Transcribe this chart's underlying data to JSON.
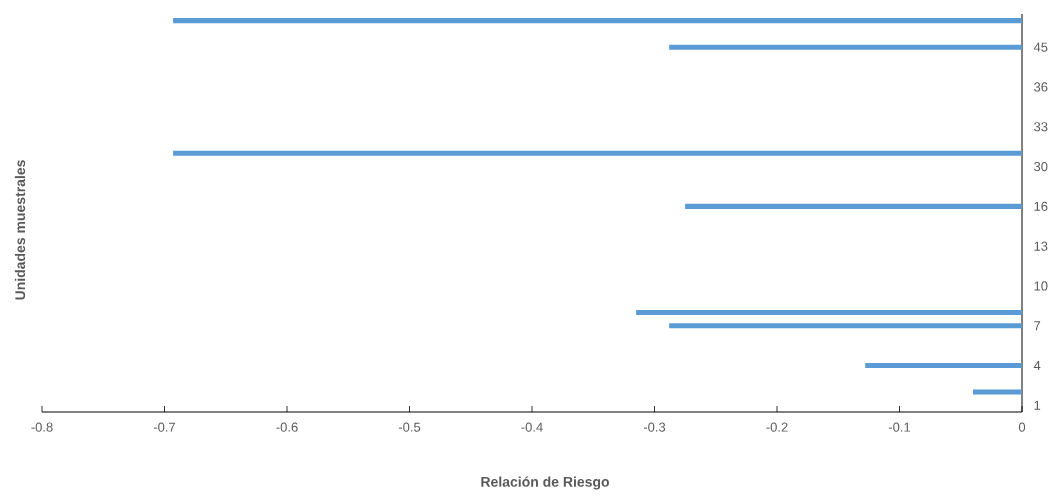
{
  "chart_data": {
    "type": "bar",
    "orientation": "horizontal",
    "xlabel": "Relación de Riesgo",
    "ylabel": "Unidades muestrales",
    "categories": [
      null,
      null,
      "45",
      null,
      null,
      "36",
      null,
      null,
      "33",
      null,
      null,
      "30",
      null,
      null,
      "16",
      null,
      null,
      "13",
      null,
      null,
      "10",
      null,
      null,
      "7",
      null,
      null,
      "4",
      null,
      null,
      "1"
    ],
    "values": [
      -0.693,
      null,
      -0.288,
      null,
      null,
      null,
      null,
      null,
      null,
      null,
      -0.693,
      null,
      null,
      null,
      -0.275,
      null,
      null,
      null,
      null,
      null,
      null,
      null,
      -0.315,
      -0.288,
      null,
      null,
      -0.128,
      null,
      -0.04,
      null
    ],
    "color": "#5b9bd5",
    "xlim": [
      -0.8,
      0
    ],
    "xticks": [
      -0.8,
      -0.7,
      -0.6,
      -0.5,
      -0.4,
      -0.3,
      -0.2,
      -0.1,
      0
    ],
    "grid": false
  }
}
